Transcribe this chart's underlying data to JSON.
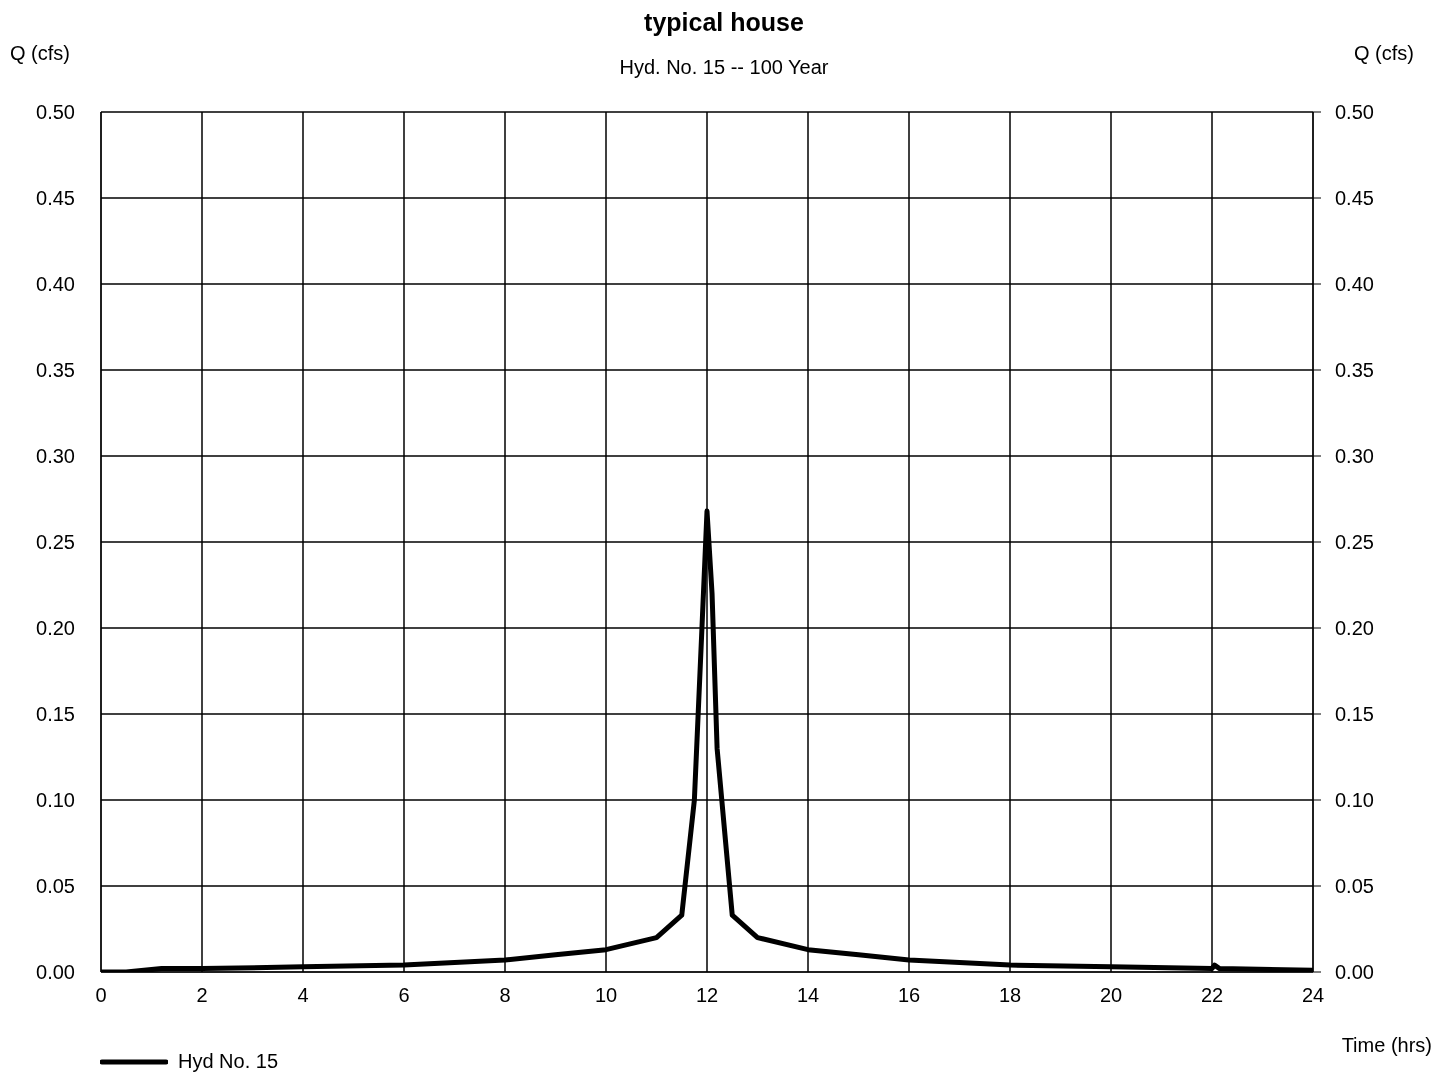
{
  "chart_data": {
    "type": "line",
    "title": "typical house",
    "subtitle": "Hyd. No. 15 -- 100 Year",
    "xlabel": "Time (hrs)",
    "ylabel": "Q (cfs)",
    "y2label": "Q (cfs)",
    "series": [
      {
        "name": "Hyd No. 15",
        "color": "#000000",
        "x": [
          0,
          0.5,
          1.2,
          2,
          4,
          6,
          8,
          9,
          10,
          11,
          11.5,
          11.75,
          11.9,
          12.0,
          12.1,
          12.2,
          12.5,
          13,
          14,
          15,
          16,
          18,
          20,
          22,
          22.05,
          22.15,
          24
        ],
        "values": [
          0,
          0,
          0.002,
          0.002,
          0.003,
          0.004,
          0.007,
          0.01,
          0.013,
          0.02,
          0.033,
          0.1,
          0.2,
          0.268,
          0.22,
          0.13,
          0.033,
          0.02,
          0.013,
          0.01,
          0.007,
          0.004,
          0.003,
          0.002,
          0.004,
          0.002,
          0.001
        ]
      }
    ],
    "xlim": [
      0,
      24
    ],
    "xticks": [
      0,
      2,
      4,
      6,
      8,
      10,
      12,
      14,
      16,
      18,
      20,
      22,
      24
    ],
    "ylim": [
      0,
      0.5
    ],
    "yticks": [
      {
        "value": 0,
        "label": "0.00"
      },
      {
        "value": 0.05,
        "label": "0.05"
      },
      {
        "value": 0.1,
        "label": "0.10"
      },
      {
        "value": 0.15,
        "label": "0.15"
      },
      {
        "value": 0.2,
        "label": "0.20"
      },
      {
        "value": 0.25,
        "label": "0.25"
      },
      {
        "value": 0.3,
        "label": "0.30"
      },
      {
        "value": 0.35,
        "label": "0.35"
      },
      {
        "value": 0.4,
        "label": "0.40"
      },
      {
        "value": 0.45,
        "label": "0.45"
      },
      {
        "value": 0.5,
        "label": "0.50"
      }
    ],
    "y2lim": [
      0,
      0.5
    ],
    "y2ticks": [
      {
        "value": 0,
        "label": "0.00"
      },
      {
        "value": 0.05,
        "label": "0.05"
      },
      {
        "value": 0.1,
        "label": "0.10"
      },
      {
        "value": 0.15,
        "label": "0.15"
      },
      {
        "value": 0.2,
        "label": "0.20"
      },
      {
        "value": 0.25,
        "label": "0.25"
      },
      {
        "value": 0.3,
        "label": "0.30"
      },
      {
        "value": 0.35,
        "label": "0.35"
      },
      {
        "value": 0.4,
        "label": "0.40"
      },
      {
        "value": 0.45,
        "label": "0.45"
      },
      {
        "value": 0.5,
        "label": "0.50"
      }
    ],
    "grid": true,
    "legend": "bottom left",
    "line_style": "solid"
  }
}
